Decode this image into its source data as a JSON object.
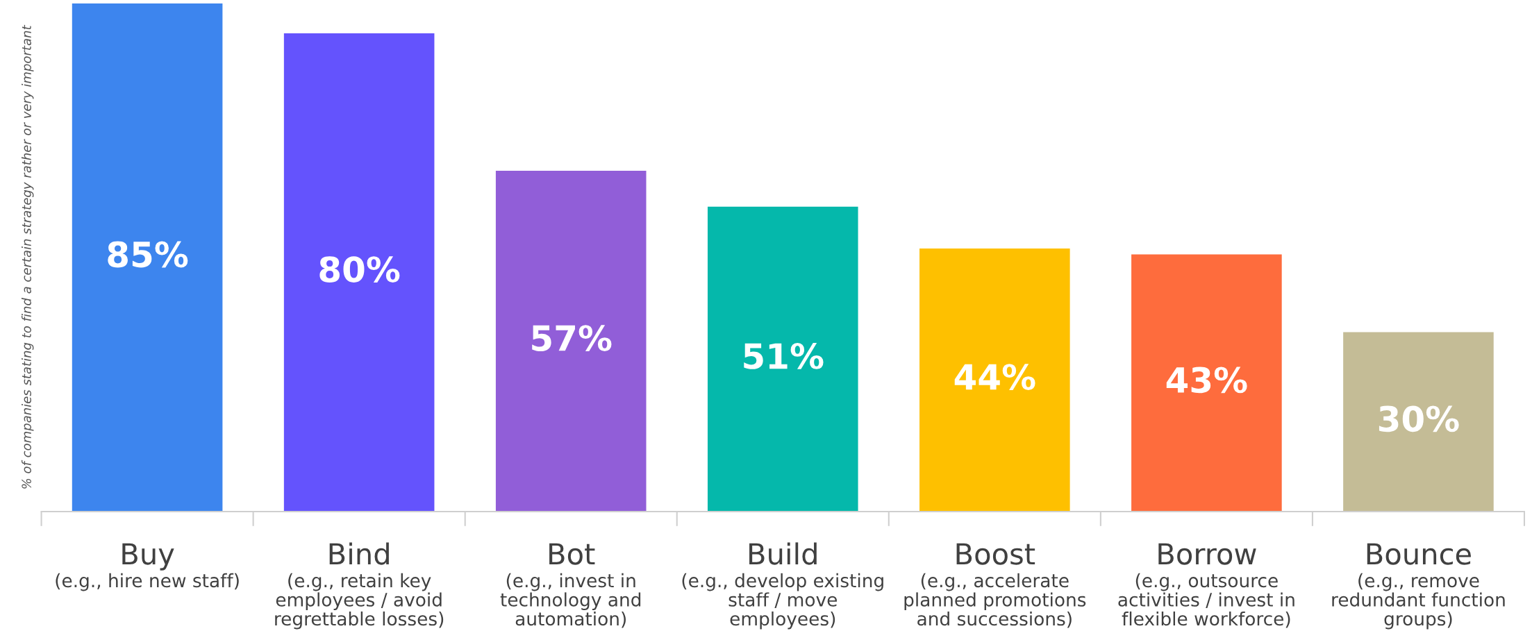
{
  "chart_data": {
    "type": "bar",
    "ylabel": "% of companies stating to find a certain strategy rather or very important",
    "categories": [
      "Buy\n(e.g., hire new staff)",
      "Bind\n(e.g., retain key\nemployees / avoid\nregrettable losses)",
      "Bot\n(e.g., invest in\ntechnology and\nautomation)",
      "Build\n(e.g., develop existing\nstaff / move\nemployees)",
      "Boost\n(e.g., accelerate\nplanned promotions\nand successions)",
      "Borrow\n(e.g., outsource\nactivities / invest in\nflexible workforce)",
      "Bounce\n(e.g., remove\nredundant function\ngroups)"
    ],
    "values": [
      85,
      80,
      57,
      51,
      44,
      43,
      30
    ],
    "colors": [
      "#3d85ee",
      "#6453fd",
      "#915ed8",
      "#05b8ab",
      "#fec000",
      "#fe6c3d",
      "#c4bc96"
    ],
    "value_labels": [
      "85%",
      "80%",
      "57%",
      "51%",
      "44%",
      "43%",
      "30%"
    ],
    "ylim": [
      0,
      85
    ]
  }
}
